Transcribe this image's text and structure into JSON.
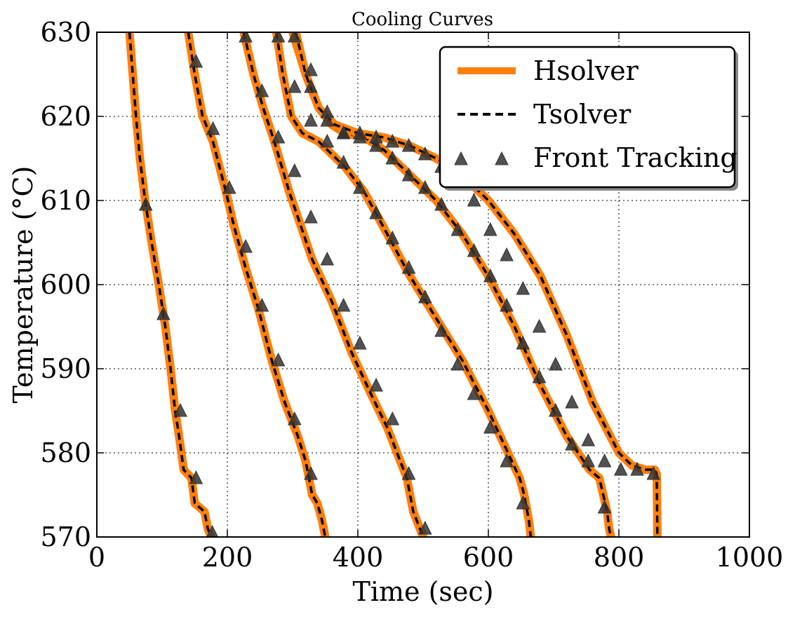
{
  "chart_data": {
    "type": "line",
    "title": "Cooling Curves",
    "xlabel": "Time (sec)",
    "ylabel": "Temperature (°C)",
    "xlim": [
      0,
      1000
    ],
    "ylim": [
      570,
      630
    ],
    "xticks": [
      "0",
      "200",
      "400",
      "600",
      "800",
      "1000"
    ],
    "yticks": [
      "570",
      "580",
      "590",
      "600",
      "610",
      "620",
      "630"
    ],
    "grid": true,
    "legend_position": "top-right",
    "legend": [
      "Hsolver",
      "Tsolver",
      "Front Tracking"
    ],
    "colors": {
      "hsolver": "#ff7f0e",
      "tsolver": "#000000",
      "markers": "#333333"
    },
    "curves": [
      {
        "line": [
          [
            50,
            630
          ],
          [
            55,
            625
          ],
          [
            60,
            620
          ],
          [
            66,
            615
          ],
          [
            74,
            610
          ],
          [
            84,
            605
          ],
          [
            95,
            600
          ],
          [
            105,
            595
          ],
          [
            113,
            590
          ],
          [
            120,
            585
          ],
          [
            126,
            582
          ],
          [
            133,
            578
          ],
          [
            145,
            577
          ],
          [
            150,
            574
          ],
          [
            165,
            573
          ],
          [
            170,
            571
          ],
          [
            175,
            570
          ]
        ],
        "markers": [
          [
            75,
            609.5
          ],
          [
            102,
            596.5
          ],
          [
            128,
            585
          ],
          [
            152,
            577
          ],
          [
            177,
            570.5
          ]
        ]
      },
      {
        "line": [
          [
            140,
            630
          ],
          [
            150,
            625
          ],
          [
            162,
            620
          ],
          [
            178,
            617
          ],
          [
            198,
            611
          ],
          [
            210,
            607
          ],
          [
            228,
            602
          ],
          [
            248,
            597
          ],
          [
            268,
            591
          ],
          [
            288,
            586
          ],
          [
            308,
            582
          ],
          [
            320,
            579
          ],
          [
            325,
            577
          ],
          [
            330,
            575
          ],
          [
            338,
            574
          ],
          [
            345,
            572
          ],
          [
            350,
            570
          ]
        ],
        "markers": [
          [
            152,
            626.5
          ],
          [
            178,
            618.5
          ],
          [
            203,
            611.5
          ],
          [
            228,
            604.5
          ],
          [
            253,
            597.5
          ],
          [
            278,
            591
          ],
          [
            303,
            584
          ],
          [
            328,
            577.5
          ]
        ]
      },
      {
        "line": [
          [
            225,
            630
          ],
          [
            240,
            625
          ],
          [
            255,
            621
          ],
          [
            272,
            617
          ],
          [
            295,
            611
          ],
          [
            330,
            603
          ],
          [
            360,
            598
          ],
          [
            390,
            592
          ],
          [
            420,
            587
          ],
          [
            445,
            583
          ],
          [
            465,
            579
          ],
          [
            475,
            577
          ],
          [
            480,
            575
          ],
          [
            485,
            573
          ],
          [
            490,
            572
          ],
          [
            495,
            571
          ],
          [
            500,
            570
          ]
        ],
        "markers": [
          [
            228,
            629.5
          ],
          [
            253,
            623
          ],
          [
            278,
            617.5
          ],
          [
            303,
            613.5
          ],
          [
            328,
            608
          ],
          [
            353,
            603
          ],
          [
            378,
            597.5
          ],
          [
            403,
            593
          ],
          [
            428,
            588
          ],
          [
            453,
            584
          ],
          [
            478,
            577.5
          ],
          [
            503,
            571
          ]
        ]
      },
      {
        "line": [
          [
            275,
            630
          ],
          [
            285,
            625
          ],
          [
            298,
            620
          ],
          [
            315,
            618
          ],
          [
            340,
            617
          ],
          [
            380,
            614
          ],
          [
            410,
            611
          ],
          [
            445,
            606
          ],
          [
            480,
            601
          ],
          [
            520,
            596
          ],
          [
            560,
            591
          ],
          [
            600,
            585
          ],
          [
            630,
            580
          ],
          [
            648,
            577
          ],
          [
            655,
            575
          ],
          [
            662,
            572
          ],
          [
            665,
            570
          ]
        ],
        "markers": [
          [
            278,
            629.5
          ],
          [
            303,
            623.5
          ],
          [
            328,
            619.5
          ],
          [
            353,
            617
          ],
          [
            378,
            614.5
          ],
          [
            403,
            611.5
          ],
          [
            428,
            608.5
          ],
          [
            453,
            605.5
          ],
          [
            478,
            602
          ],
          [
            503,
            598.5
          ],
          [
            528,
            594.5
          ],
          [
            553,
            590.5
          ],
          [
            578,
            587
          ],
          [
            603,
            583
          ],
          [
            628,
            579
          ],
          [
            653,
            574
          ]
        ]
      },
      {
        "line": [
          [
            300,
            630
          ],
          [
            320,
            625
          ],
          [
            340,
            621
          ],
          [
            360,
            619
          ],
          [
            380,
            618
          ],
          [
            410,
            617.5
          ],
          [
            440,
            616
          ],
          [
            480,
            613
          ],
          [
            520,
            610
          ],
          [
            560,
            606
          ],
          [
            600,
            601
          ],
          [
            640,
            595
          ],
          [
            680,
            588
          ],
          [
            720,
            582
          ],
          [
            755,
            578
          ],
          [
            770,
            577
          ],
          [
            776,
            575
          ],
          [
            782,
            573
          ],
          [
            785,
            571
          ],
          [
            788,
            570
          ]
        ],
        "markers": [
          [
            303,
            629.5
          ],
          [
            328,
            623.5
          ],
          [
            353,
            620.5
          ],
          [
            378,
            618
          ],
          [
            403,
            617.5
          ],
          [
            428,
            616.5
          ],
          [
            453,
            615
          ],
          [
            478,
            613
          ],
          [
            503,
            611.5
          ],
          [
            528,
            609.5
          ],
          [
            553,
            606.5
          ],
          [
            578,
            604
          ],
          [
            603,
            601
          ],
          [
            628,
            597.5
          ],
          [
            653,
            593
          ],
          [
            678,
            589
          ],
          [
            703,
            585
          ],
          [
            728,
            581
          ],
          [
            753,
            579
          ],
          [
            778,
            573.5
          ]
        ]
      },
      {
        "line": [
          [
            305,
            630
          ],
          [
            320,
            625
          ],
          [
            340,
            621
          ],
          [
            365,
            619
          ],
          [
            400,
            618
          ],
          [
            440,
            617.5
          ],
          [
            480,
            616.5
          ],
          [
            520,
            615
          ],
          [
            560,
            613
          ],
          [
            600,
            610
          ],
          [
            640,
            606
          ],
          [
            680,
            601
          ],
          [
            720,
            594
          ],
          [
            760,
            586
          ],
          [
            800,
            580
          ],
          [
            820,
            578.5
          ],
          [
            840,
            578
          ],
          [
            855,
            578
          ],
          [
            858,
            577.5
          ],
          [
            859,
            570
          ]
        ],
        "markers": [
          [
            328,
            625.5
          ],
          [
            353,
            619.5
          ],
          [
            378,
            618
          ],
          [
            403,
            618
          ],
          [
            428,
            617.5
          ],
          [
            453,
            617
          ],
          [
            478,
            616.5
          ],
          [
            503,
            615.5
          ],
          [
            528,
            614
          ],
          [
            553,
            612
          ],
          [
            578,
            610
          ],
          [
            603,
            606.5
          ],
          [
            628,
            603.5
          ],
          [
            653,
            599.5
          ],
          [
            678,
            595
          ],
          [
            703,
            590.5
          ],
          [
            728,
            586
          ],
          [
            753,
            581.5
          ],
          [
            778,
            579
          ],
          [
            803,
            578
          ],
          [
            828,
            578
          ],
          [
            853,
            577.5
          ]
        ]
      }
    ]
  }
}
